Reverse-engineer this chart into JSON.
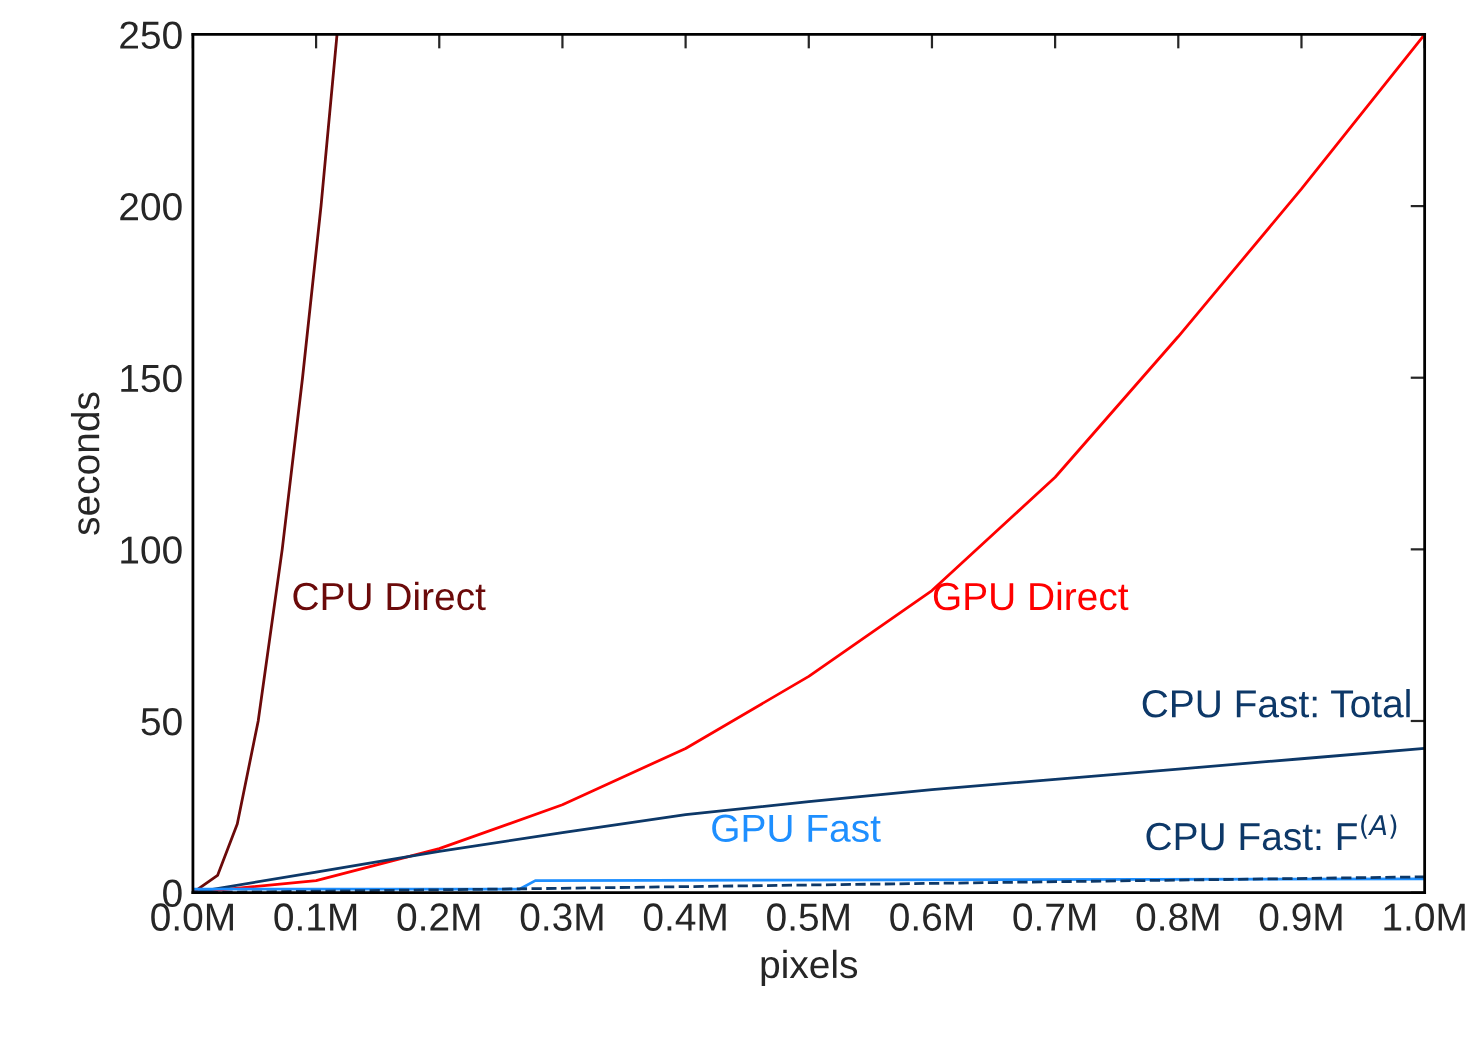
{
  "chart_data": {
    "type": "line",
    "xlabel": "pixels",
    "ylabel": "seconds",
    "xlim": [
      0,
      1
    ],
    "ylim": [
      0,
      250
    ],
    "xticks": [
      {
        "value": 0,
        "label": "0.0M"
      },
      {
        "value": 0.1,
        "label": "0.1M"
      },
      {
        "value": 0.2,
        "label": "0.2M"
      },
      {
        "value": 0.3,
        "label": "0.3M"
      },
      {
        "value": 0.4,
        "label": "0.4M"
      },
      {
        "value": 0.5,
        "label": "0.5M"
      },
      {
        "value": 0.6,
        "label": "0.6M"
      },
      {
        "value": 0.7,
        "label": "0.7M"
      },
      {
        "value": 0.8,
        "label": "0.8M"
      },
      {
        "value": 0.9,
        "label": "0.9M"
      },
      {
        "value": 1.0,
        "label": "1.0M"
      }
    ],
    "yticks": [
      0,
      50,
      100,
      150,
      200,
      250
    ],
    "grid": false,
    "line_style": "solid",
    "series": [
      {
        "name": "CPU Direct",
        "color": "#6b0a0a",
        "x": [
          0,
          0.02,
          0.036,
          0.053,
          0.0725,
          0.089,
          0.104,
          0.117
        ],
        "values": [
          0,
          5,
          20,
          50,
          100,
          150,
          200,
          250
        ]
      },
      {
        "name": "GPU Direct",
        "color": "#ff0000",
        "x": [
          0,
          0.1,
          0.2,
          0.3,
          0.4,
          0.5,
          0.6,
          0.7,
          0.8,
          0.9,
          1.0
        ],
        "values": [
          0,
          3.5,
          12.8,
          25.6,
          42,
          63,
          88,
          121,
          162,
          205,
          250
        ]
      },
      {
        "name": "CPU Fast: Total",
        "color": "#0d3868",
        "x": [
          0,
          0.1,
          0.2,
          0.3,
          0.4,
          0.5,
          0.6,
          0.7,
          0.8,
          0.9,
          1.0
        ],
        "values": [
          0,
          6,
          12,
          17.5,
          22.7,
          26.5,
          30,
          33,
          36,
          39,
          42
        ]
      },
      {
        "name": "GPU Fast",
        "color": "#1e8fff",
        "x": [
          0,
          0.265,
          0.278,
          1.0
        ],
        "values": [
          1,
          1,
          3.5,
          4
        ]
      },
      {
        "name": "CPU Fast: F$^{(A)}$",
        "color": "#0d3868",
        "line_style": "dashed",
        "x": [
          0,
          0.265,
          1.0
        ],
        "values": [
          0,
          1.1,
          4.6
        ]
      }
    ]
  }
}
